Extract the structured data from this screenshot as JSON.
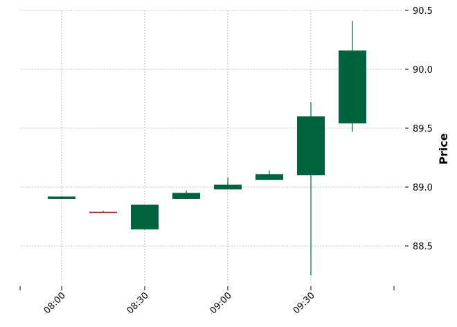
{
  "chart_data": {
    "type": "candlestick",
    "ylabel": "Price",
    "ylim": [
      88.15,
      90.5
    ],
    "y_ticks": [
      "88.5",
      "89.0",
      "89.5",
      "90.0",
      "90.5"
    ],
    "x_ticks": [
      {
        "time": "07:45",
        "label": ""
      },
      {
        "time": "08:00",
        "label": "08:00"
      },
      {
        "time": "08:30",
        "label": "08:30"
      },
      {
        "time": "09:00",
        "label": "09:00"
      },
      {
        "time": "09:30",
        "label": "09:30"
      },
      {
        "time": "10:00",
        "label": ""
      }
    ],
    "grid": true,
    "y_axis_side": "right",
    "colors": {
      "up": "#006340",
      "down": "#a02128",
      "grid": "#b0b0b0"
    },
    "candles": [
      {
        "time": "08:00",
        "open": 88.9,
        "high": 88.92,
        "low": 88.9,
        "close": 88.92
      },
      {
        "time": "08:15",
        "open": 88.79,
        "high": 88.8,
        "low": 88.78,
        "close": 88.78
      },
      {
        "time": "08:30",
        "open": 88.64,
        "high": 88.85,
        "low": 88.64,
        "close": 88.85
      },
      {
        "time": "08:45",
        "open": 88.9,
        "high": 88.97,
        "low": 88.9,
        "close": 88.95
      },
      {
        "time": "09:00",
        "open": 88.98,
        "high": 89.08,
        "low": 88.98,
        "close": 89.02
      },
      {
        "time": "09:15",
        "open": 89.06,
        "high": 89.14,
        "low": 89.06,
        "close": 89.11
      },
      {
        "time": "09:30",
        "open": 89.1,
        "high": 89.72,
        "low": 88.25,
        "close": 89.6
      },
      {
        "time": "09:45",
        "open": 89.54,
        "high": 90.41,
        "low": 89.47,
        "close": 90.16
      }
    ]
  }
}
